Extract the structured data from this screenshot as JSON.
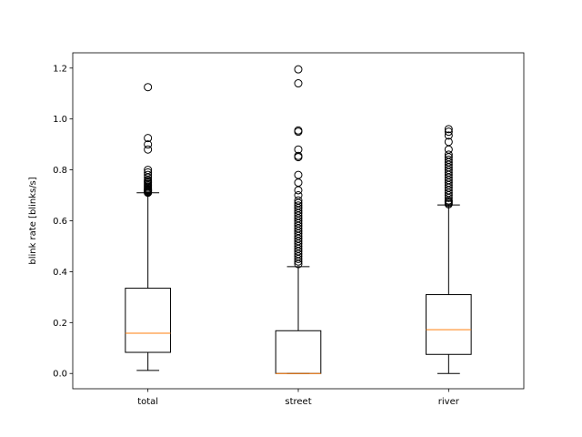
{
  "chart_data": {
    "type": "boxplot",
    "title": "",
    "xlabel": "",
    "ylabel": "blink rate [blinks/s]",
    "ylim": [
      -0.06,
      1.26
    ],
    "yticks": [
      0.0,
      0.2,
      0.4,
      0.6,
      0.8,
      1.0,
      1.2
    ],
    "ytick_labels": [
      "0.0",
      "0.2",
      "0.4",
      "0.6",
      "0.8",
      "1.0",
      "1.2"
    ],
    "grid": false,
    "categories": [
      "total",
      "street",
      "river"
    ],
    "boxes": [
      {
        "label": "total",
        "whisker_low": 0.012,
        "q1": 0.083,
        "median": 0.158,
        "q3": 0.335,
        "whisker_high": 0.71,
        "outliers": [
          0.71,
          0.712,
          0.715,
          0.718,
          0.72,
          0.722,
          0.725,
          0.73,
          0.735,
          0.74,
          0.745,
          0.75,
          0.755,
          0.76,
          0.77,
          0.78,
          0.79,
          0.8,
          0.88,
          0.9,
          0.925,
          1.125
        ]
      },
      {
        "label": "street",
        "whisker_low": 0.0,
        "q1": 0.0,
        "median": 0.0,
        "q3": 0.168,
        "whisker_high": 0.42,
        "outliers": [
          0.43,
          0.44,
          0.45,
          0.46,
          0.47,
          0.48,
          0.49,
          0.5,
          0.51,
          0.52,
          0.53,
          0.54,
          0.55,
          0.56,
          0.57,
          0.58,
          0.59,
          0.6,
          0.61,
          0.62,
          0.63,
          0.64,
          0.65,
          0.66,
          0.67,
          0.68,
          0.7,
          0.72,
          0.75,
          0.78,
          0.85,
          0.855,
          0.88,
          0.95,
          0.955,
          1.14,
          1.195
        ]
      },
      {
        "label": "river",
        "whisker_low": 0.0,
        "q1": 0.075,
        "median": 0.172,
        "q3": 0.31,
        "whisker_high": 0.662,
        "outliers": [
          0.665,
          0.67,
          0.675,
          0.68,
          0.69,
          0.7,
          0.71,
          0.72,
          0.73,
          0.74,
          0.75,
          0.76,
          0.77,
          0.78,
          0.79,
          0.8,
          0.81,
          0.82,
          0.83,
          0.84,
          0.85,
          0.86,
          0.88,
          0.91,
          0.935,
          0.95,
          0.96
        ]
      }
    ],
    "colors": {
      "box": "#000000",
      "median": "#ff7f0e",
      "outlier": "#000000"
    }
  }
}
